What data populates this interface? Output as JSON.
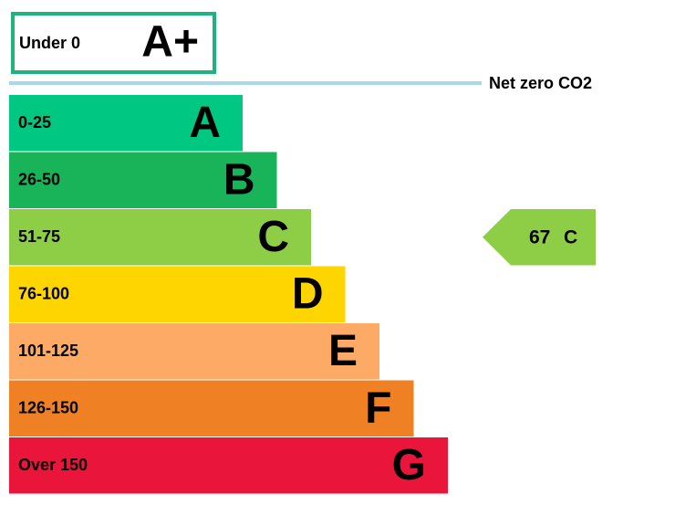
{
  "top_band": {
    "range": "Under 0",
    "letter": "A+",
    "color": "#1db37d"
  },
  "net_zero": {
    "label": "Net zero CO2"
  },
  "bands": [
    {
      "range": "0-25",
      "letter": "A",
      "color": "#00c781"
    },
    {
      "range": "26-50",
      "letter": "B",
      "color": "#19b459"
    },
    {
      "range": "51-75",
      "letter": "C",
      "color": "#8dce46"
    },
    {
      "range": "76-100",
      "letter": "D",
      "color": "#ffd500"
    },
    {
      "range": "101-125",
      "letter": "E",
      "color": "#fcaa65"
    },
    {
      "range": "126-150",
      "letter": "F",
      "color": "#ef8023"
    },
    {
      "range": "Over 150",
      "letter": "G",
      "color": "#e9153b"
    }
  ],
  "current": {
    "score": 67,
    "letter": "C"
  }
}
